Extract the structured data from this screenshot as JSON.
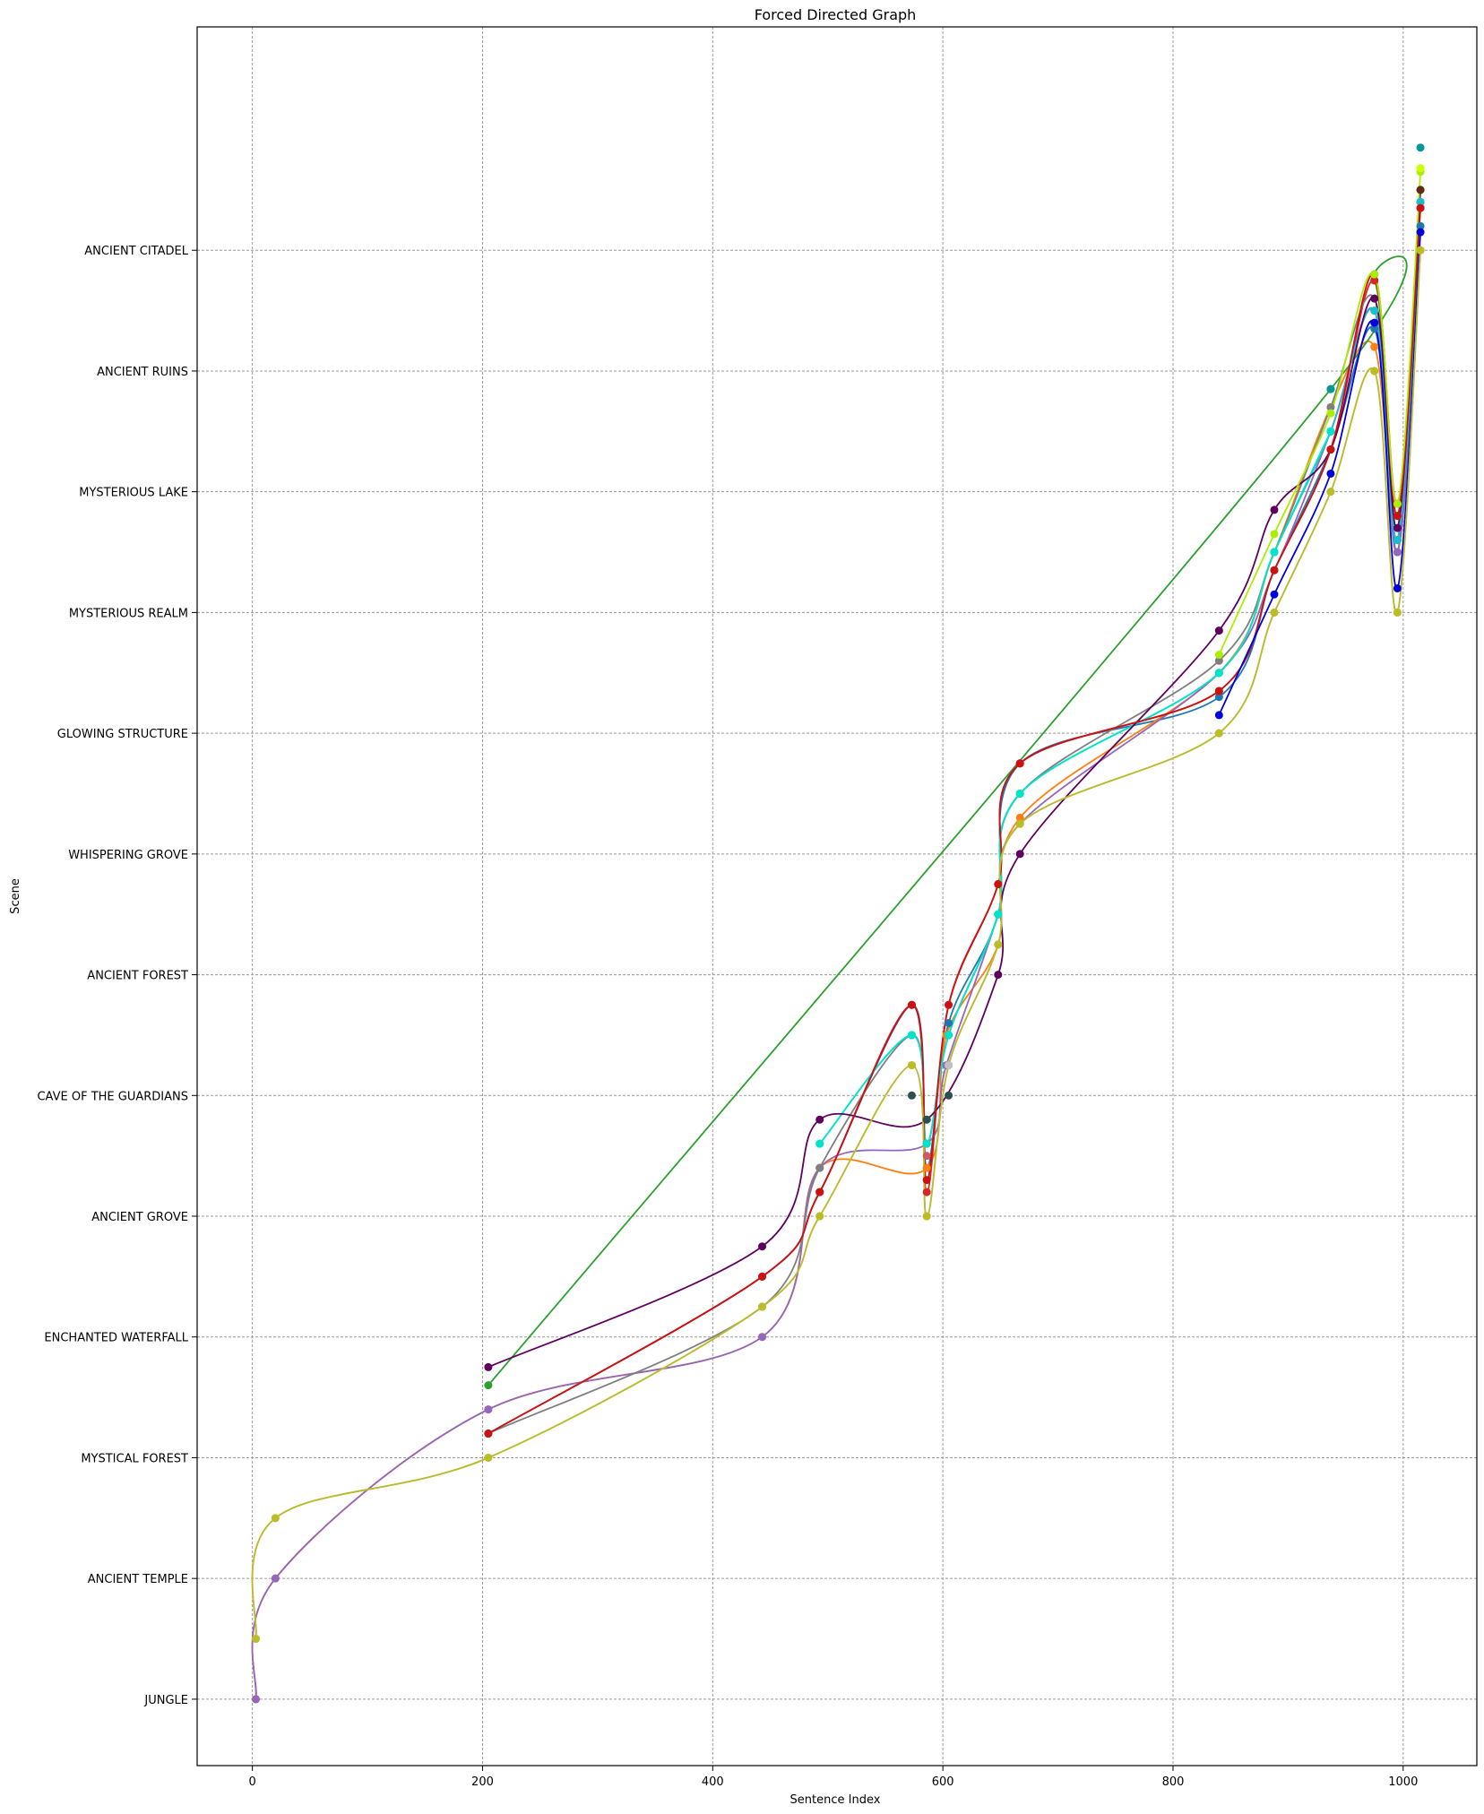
{
  "chart_data": {
    "type": "line",
    "title": "Forced Directed Graph",
    "xlabel": "Sentence Index",
    "ylabel": "Scene",
    "xlim": [
      -48,
      1064
    ],
    "ylim": [
      -0.55,
      13.85
    ],
    "grid": true,
    "x_ticks": [
      0,
      200,
      400,
      600,
      800,
      1000
    ],
    "x_tick_labels": [
      "0",
      "200",
      "400",
      "600",
      "800",
      "1000"
    ],
    "y_tick_labels": [
      "JUNGLE",
      "ANCIENT TEMPLE",
      "MYSTICAL FOREST",
      "ENCHANTED WATERFALL",
      "ANCIENT GROVE",
      "CAVE OF THE GUARDIANS",
      "ANCIENT FOREST",
      "WHISPERING GROVE",
      "GLOWING STRUCTURE",
      "MYSTERIOUS REALM",
      "MYSTERIOUS LAKE",
      "ANCIENT RUINS",
      "ANCIENT CITADEL"
    ],
    "series": [
      {
        "color": "#1f77b4",
        "points": [
          [
            205,
            2.2
          ],
          [
            443,
            3.5
          ],
          [
            493,
            4.2
          ],
          [
            573,
            5.75
          ],
          [
            586,
            4.4
          ],
          [
            605,
            5.6
          ],
          [
            648,
            6.5
          ],
          [
            667,
            7.75
          ],
          [
            840,
            8.3
          ],
          [
            888,
            9.35
          ],
          [
            937,
            10.35
          ],
          [
            975,
            11.35
          ],
          [
            995,
            9.5
          ],
          [
            1015,
            12.2
          ]
        ]
      },
      {
        "color": "#ff7f0e",
        "points": [
          [
            3,
            0
          ],
          [
            20,
            1
          ],
          [
            205,
            2.4
          ],
          [
            443,
            3
          ],
          [
            493,
            4.4
          ],
          [
            586,
            4.4
          ],
          [
            603,
            5.5
          ],
          [
            648,
            6.25
          ],
          [
            667,
            7.3
          ],
          [
            840,
            8.5
          ],
          [
            888,
            9.5
          ],
          [
            937,
            10.7
          ],
          [
            975,
            11.2
          ],
          [
            995,
            9.6
          ],
          [
            1015,
            12.5
          ]
        ]
      },
      {
        "color": "#2ca02c",
        "points": [
          [
            205,
            2.6
          ],
          [
            937,
            10.85
          ],
          [
            975,
            11.75
          ],
          [
            995,
            9.8
          ],
          [
            1015,
            12.4
          ]
        ]
      },
      {
        "color": "#d62728",
        "points": [
          [
            205,
            2.2
          ],
          [
            443,
            3.5
          ],
          [
            493,
            4.2
          ],
          [
            573,
            5.75
          ],
          [
            586,
            4.2
          ],
          [
            605,
            5.75
          ],
          [
            648,
            6.75
          ],
          [
            667,
            7.75
          ],
          [
            840,
            8.35
          ],
          [
            888,
            9.35
          ],
          [
            937,
            10.35
          ],
          [
            975,
            11.75
          ],
          [
            995,
            9.9
          ],
          [
            1015,
            12.35
          ]
        ]
      },
      {
        "color": "#9467bd",
        "points": [
          [
            3,
            0
          ],
          [
            20,
            1
          ],
          [
            205,
            2.4
          ],
          [
            443,
            3
          ],
          [
            493,
            4.4
          ],
          [
            586,
            4.6
          ],
          [
            603,
            5.25
          ],
          [
            648,
            6.5
          ],
          [
            667,
            7.25
          ],
          [
            840,
            8.5
          ],
          [
            888,
            9.35
          ],
          [
            937,
            10.5
          ],
          [
            975,
            11.5
          ],
          [
            995,
            9.5
          ],
          [
            1015,
            12
          ]
        ]
      },
      {
        "color": "#7f7f7f",
        "points": [
          [
            205,
            2.2
          ],
          [
            443,
            3.25
          ],
          [
            493,
            4.4
          ],
          [
            573,
            5.5
          ],
          [
            586,
            4.6
          ],
          [
            605,
            5.5
          ],
          [
            648,
            6.5
          ],
          [
            667,
            7.5
          ],
          [
            840,
            8.6
          ],
          [
            888,
            9.5
          ],
          [
            937,
            10.7
          ],
          [
            975,
            11.6
          ],
          [
            995,
            9.6
          ],
          [
            1015,
            12.4
          ]
        ]
      },
      {
        "color": "#17becf",
        "points": [
          [
            493,
            4.6
          ],
          [
            573,
            5.5
          ],
          [
            586,
            4.6
          ],
          [
            605,
            5.5
          ],
          [
            648,
            6.5
          ],
          [
            667,
            7.5
          ],
          [
            840,
            8.5
          ],
          [
            888,
            9.5
          ],
          [
            937,
            10.5
          ],
          [
            975,
            11.5
          ],
          [
            995,
            9.6
          ],
          [
            1015,
            12.4
          ]
        ]
      },
      {
        "color": "#00e5c9",
        "points": [
          [
            493,
            4.6
          ],
          [
            573,
            5.5
          ],
          [
            586,
            4.6
          ],
          [
            605,
            5.5
          ],
          [
            648,
            6.5
          ],
          [
            667,
            7.5
          ],
          [
            840,
            8.5
          ],
          [
            888,
            9.5
          ],
          [
            937,
            10.5
          ]
        ]
      },
      {
        "color": "#5f005f",
        "points": [
          [
            205,
            2.75
          ],
          [
            443,
            3.75
          ],
          [
            493,
            4.8
          ],
          [
            586,
            4.8
          ],
          [
            648,
            6
          ],
          [
            667,
            7
          ],
          [
            840,
            8.85
          ],
          [
            888,
            9.85
          ],
          [
            937,
            10.35
          ],
          [
            975,
            11.6
          ],
          [
            995,
            9.7
          ],
          [
            1015,
            12.5
          ]
        ]
      },
      {
        "color": "#cc1111",
        "points": [
          [
            205,
            2.2
          ],
          [
            443,
            3.5
          ],
          [
            493,
            4.2
          ],
          [
            573,
            5.75
          ],
          [
            586,
            4.3
          ],
          [
            605,
            5.75
          ],
          [
            648,
            6.75
          ],
          [
            667,
            7.75
          ],
          [
            840,
            8.35
          ],
          [
            888,
            9.35
          ],
          [
            937,
            10.35
          ],
          [
            975,
            11.8
          ],
          [
            995,
            9.8
          ],
          [
            1015,
            12.35
          ]
        ]
      },
      {
        "color": "#0000dd",
        "points": [
          [
            840,
            8.15
          ],
          [
            888,
            9.15
          ],
          [
            937,
            10.15
          ],
          [
            975,
            11.4
          ],
          [
            995,
            9.2
          ],
          [
            1015,
            12.15
          ]
        ]
      },
      {
        "color": "#aaee00",
        "points": [
          [
            840,
            8.65
          ],
          [
            888,
            9.65
          ],
          [
            937,
            10.65
          ],
          [
            975,
            11.8
          ],
          [
            995,
            9.9
          ],
          [
            1015,
            12.65
          ]
        ]
      },
      {
        "color": "#b8b0f0",
        "points": [
          [
            3,
            0.5
          ],
          [
            20,
            1.5
          ],
          [
            205,
            2
          ],
          [
            443,
            3.25
          ],
          [
            493,
            4
          ],
          [
            573,
            5.25
          ],
          [
            586,
            4
          ],
          [
            605,
            5.25
          ],
          [
            648,
            6.25
          ],
          [
            667,
            7.25
          ],
          [
            840,
            8
          ],
          [
            888,
            9
          ],
          [
            937,
            10
          ],
          [
            975,
            11
          ],
          [
            995,
            9
          ],
          [
            1015,
            12
          ]
        ]
      },
      {
        "color": "#bcbd22",
        "points": [
          [
            3,
            0.5
          ],
          [
            20,
            1.5
          ],
          [
            205,
            2
          ],
          [
            443,
            3.25
          ],
          [
            493,
            4
          ],
          [
            573,
            5.25
          ],
          [
            586,
            4
          ],
          [
            605,
            5.25
          ],
          [
            648,
            6.25
          ],
          [
            667,
            7.25
          ],
          [
            840,
            8
          ],
          [
            888,
            9
          ],
          [
            937,
            10
          ],
          [
            975,
            11
          ],
          [
            995,
            9
          ],
          [
            1015,
            12
          ]
        ]
      }
    ],
    "extra_points": [
      {
        "color": "#2f4f4f",
        "x": 573,
        "y": 5
      },
      {
        "color": "#2f4f4f",
        "x": 586,
        "y": 4.8
      },
      {
        "color": "#2f4f4f",
        "x": 605,
        "y": 5
      },
      {
        "color": "#009999",
        "x": 937,
        "y": 10.85
      },
      {
        "color": "#009999",
        "x": 1015,
        "y": 12.85
      },
      {
        "color": "#5a2d0c",
        "x": 1015,
        "y": 12.5
      },
      {
        "color": "#ccff00",
        "x": 1015,
        "y": 12.68
      },
      {
        "color": "#cd5c5c",
        "x": 586,
        "y": 4.5
      },
      {
        "color": "#c0c0c0",
        "x": 605,
        "y": 5.25
      }
    ]
  }
}
